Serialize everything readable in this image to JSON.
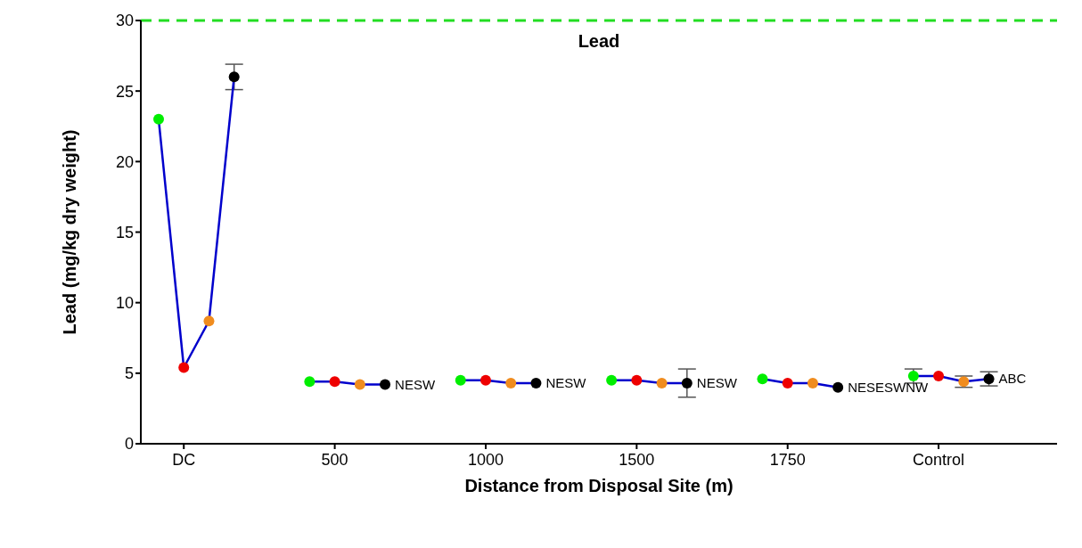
{
  "chart_data": {
    "type": "line",
    "xlabel": "Distance from Disposal Site (m)",
    "ylabel": "Lead (mg/kg dry weight)",
    "categories": [
      null,
      "DC",
      null,
      null,
      null,
      null,
      null,
      "500",
      null,
      null,
      null,
      null,
      null,
      "1000",
      null,
      null,
      null,
      null,
      null,
      "1500",
      null,
      null,
      null,
      null,
      null,
      "1750",
      null,
      null,
      null,
      null,
      null,
      "Control",
      null,
      null,
      null,
      null
    ],
    "marker": "circle",
    "series": [
      {
        "color": "#0000cc",
        "values": [
          23,
          5.4,
          8.7,
          26,
          null,
          null,
          null,
          null,
          null,
          null,
          null,
          null,
          null,
          null,
          null,
          null,
          null,
          null,
          null,
          null,
          null,
          null,
          null,
          null,
          null,
          null,
          null,
          null,
          null,
          null,
          null,
          null,
          null,
          null,
          null,
          null
        ],
        "colors": [
          "#00ee00",
          "#ee0000",
          "#f08c1e",
          "#000000",
          null,
          null,
          null,
          null,
          null,
          null,
          null,
          null,
          null,
          null,
          null,
          null,
          null,
          null,
          null,
          null,
          null,
          null,
          null,
          null,
          null,
          null,
          null,
          null,
          null,
          null,
          null,
          null,
          null,
          null,
          null,
          null
        ],
        "errors": [
          null,
          null,
          null,
          0.9,
          null,
          null,
          null,
          null,
          null,
          null,
          null,
          null,
          null,
          null,
          null,
          null,
          null,
          null,
          null,
          null,
          null,
          null,
          null,
          null,
          null,
          null,
          null,
          null,
          null,
          null,
          null,
          null,
          null,
          null,
          null,
          null
        ]
      },
      {
        "color": "#0000cc",
        "values": [
          null,
          null,
          null,
          null,
          null,
          null,
          4.4,
          4.4,
          4.2,
          4.2,
          null,
          null,
          null,
          null,
          null,
          null,
          null,
          null,
          null,
          null,
          null,
          null,
          null,
          null,
          null,
          null,
          null,
          null,
          null,
          null,
          null,
          null,
          null,
          null,
          null,
          null
        ],
        "colors": [
          null,
          null,
          null,
          null,
          null,
          null,
          "#00ee00",
          "#ee0000",
          "#f08c1e",
          "#000000",
          null,
          null,
          null,
          null,
          null,
          null,
          null,
          null,
          null,
          null,
          null,
          null,
          null,
          null,
          null,
          null,
          null,
          null,
          null,
          null,
          null,
          null,
          null,
          null,
          null,
          null
        ]
      },
      {
        "color": "#0000cc",
        "values": [
          null,
          null,
          null,
          null,
          null,
          null,
          null,
          null,
          null,
          null,
          null,
          null,
          4.5,
          4.5,
          4.3,
          4.3,
          null,
          null,
          null,
          null,
          null,
          null,
          null,
          null,
          null,
          null,
          null,
          null,
          null,
          null,
          null,
          null,
          null,
          null,
          null,
          null
        ],
        "colors": [
          null,
          null,
          null,
          null,
          null,
          null,
          null,
          null,
          null,
          null,
          null,
          null,
          "#00ee00",
          "#ee0000",
          "#f08c1e",
          "#000000",
          null,
          null,
          null,
          null,
          null,
          null,
          null,
          null,
          null,
          null,
          null,
          null,
          null,
          null,
          null,
          null,
          null,
          null,
          null,
          null
        ]
      },
      {
        "color": "#0000cc",
        "values": [
          null,
          null,
          null,
          null,
          null,
          null,
          null,
          null,
          null,
          null,
          null,
          null,
          null,
          null,
          null,
          null,
          null,
          null,
          4.5,
          4.5,
          4.3,
          4.3,
          null,
          null,
          null,
          null,
          null,
          null,
          null,
          null,
          null,
          null,
          null,
          null,
          null,
          null
        ],
        "colors": [
          null,
          null,
          null,
          null,
          null,
          null,
          null,
          null,
          null,
          null,
          null,
          null,
          null,
          null,
          null,
          null,
          null,
          null,
          "#00ee00",
          "#ee0000",
          "#f08c1e",
          "#000000",
          null,
          null,
          null,
          null,
          null,
          null,
          null,
          null,
          null,
          null,
          null,
          null,
          null,
          null
        ],
        "errors": [
          null,
          null,
          null,
          null,
          null,
          null,
          null,
          null,
          null,
          null,
          null,
          null,
          null,
          null,
          null,
          null,
          null,
          null,
          null,
          null,
          null,
          1,
          null,
          null,
          null,
          null,
          null,
          null,
          null,
          null,
          null,
          null,
          null,
          null,
          null,
          null
        ]
      },
      {
        "color": "#0000cc",
        "values": [
          null,
          null,
          null,
          null,
          null,
          null,
          null,
          null,
          null,
          null,
          null,
          null,
          null,
          null,
          null,
          null,
          null,
          null,
          null,
          null,
          null,
          null,
          null,
          null,
          4.6,
          4.3,
          4.3,
          4,
          null,
          null,
          null,
          null,
          null,
          null,
          null,
          null
        ],
        "colors": [
          null,
          null,
          null,
          null,
          null,
          null,
          null,
          null,
          null,
          null,
          null,
          null,
          null,
          null,
          null,
          null,
          null,
          null,
          null,
          null,
          null,
          null,
          null,
          null,
          "#00ee00",
          "#ee0000",
          "#f08c1e",
          "#000000",
          null,
          null,
          null,
          null,
          null,
          null,
          null,
          null
        ]
      },
      {
        "color": "#0000cc",
        "values": [
          null,
          null,
          null,
          null,
          null,
          null,
          null,
          null,
          null,
          null,
          null,
          null,
          null,
          null,
          null,
          null,
          null,
          null,
          null,
          null,
          null,
          null,
          null,
          null,
          null,
          null,
          null,
          null,
          null,
          null,
          4.8,
          4.8,
          4.4,
          4.6,
          null,
          null
        ],
        "colors": [
          null,
          null,
          null,
          null,
          null,
          null,
          null,
          null,
          null,
          null,
          null,
          null,
          null,
          null,
          null,
          null,
          null,
          null,
          null,
          null,
          null,
          null,
          null,
          null,
          null,
          null,
          null,
          null,
          null,
          null,
          "#00ee00",
          "#ee0000",
          "#f08c1e",
          "#000000",
          null,
          null
        ],
        "errors": [
          null,
          null,
          null,
          null,
          null,
          null,
          null,
          null,
          null,
          null,
          null,
          null,
          null,
          null,
          null,
          null,
          null,
          null,
          null,
          null,
          null,
          null,
          null,
          null,
          null,
          null,
          null,
          null,
          null,
          null,
          0.5,
          null,
          0.4,
          0.5,
          null,
          null
        ]
      }
    ],
    "ylim": [
      0,
      30
    ],
    "yticks": [
      0,
      5,
      10,
      15,
      20,
      25,
      30
    ],
    "ref_lines": [
      {
        "axis": "y",
        "value": 30,
        "label": "Lead",
        "color": "#22dd22",
        "line_style": "dashed"
      }
    ],
    "annotations": [
      "NESW",
      "NESW",
      "NESW",
      "NESESWNW",
      "ABC"
    ]
  }
}
